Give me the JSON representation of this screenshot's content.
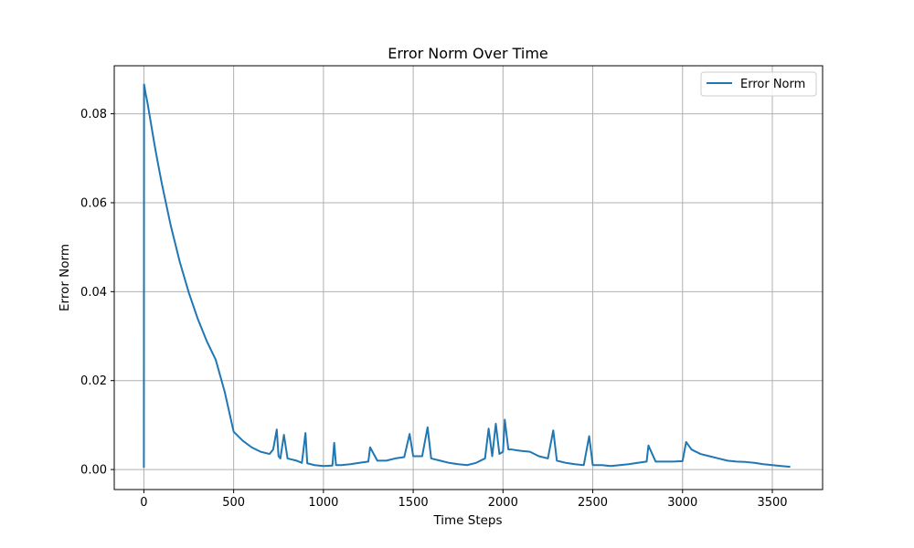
{
  "chart_data": {
    "type": "line",
    "title": "Error Norm Over Time",
    "xlabel": "Time Steps",
    "ylabel": "Error Norm",
    "xlim": [
      -165,
      3780
    ],
    "ylim": [
      -0.0045,
      0.0908
    ],
    "xticks": [
      0,
      500,
      1000,
      1500,
      2000,
      2500,
      3000,
      3500
    ],
    "yticks": [
      0.0,
      0.02,
      0.04,
      0.06,
      0.08
    ],
    "ytick_labels": [
      "0.00",
      "0.02",
      "0.04",
      "0.06",
      "0.08"
    ],
    "grid": true,
    "legend_position": "top-right",
    "series": [
      {
        "name": "Error Norm",
        "color": "#1f77b4",
        "x": [
          0,
          1,
          3,
          10,
          20,
          40,
          60,
          80,
          100,
          150,
          200,
          250,
          300,
          350,
          400,
          450,
          500,
          550,
          600,
          650,
          700,
          720,
          740,
          750,
          760,
          780,
          800,
          850,
          880,
          900,
          910,
          950,
          1000,
          1050,
          1060,
          1070,
          1100,
          1150,
          1200,
          1250,
          1260,
          1300,
          1350,
          1400,
          1450,
          1480,
          1500,
          1550,
          1580,
          1600,
          1650,
          1700,
          1750,
          1800,
          1850,
          1900,
          1920,
          1940,
          1960,
          1980,
          2000,
          2010,
          2030,
          2050,
          2080,
          2100,
          2150,
          2200,
          2250,
          2280,
          2300,
          2350,
          2400,
          2450,
          2480,
          2500,
          2550,
          2600,
          2650,
          2700,
          2750,
          2800,
          2810,
          2850,
          2900,
          2950,
          3000,
          3020,
          3050,
          3100,
          3150,
          3200,
          3250,
          3300,
          3350,
          3400,
          3450,
          3500,
          3550,
          3600
        ],
        "y": [
          0.0004,
          0.0866,
          0.0862,
          0.0845,
          0.0825,
          0.0777,
          0.0729,
          0.0685,
          0.0643,
          0.0548,
          0.0467,
          0.0398,
          0.0339,
          0.0289,
          0.0247,
          0.0175,
          0.0085,
          0.0065,
          0.005,
          0.004,
          0.0035,
          0.0045,
          0.009,
          0.003,
          0.0025,
          0.0078,
          0.0025,
          0.002,
          0.0015,
          0.0082,
          0.0014,
          0.001,
          0.0008,
          0.0009,
          0.006,
          0.001,
          0.001,
          0.0012,
          0.0015,
          0.0018,
          0.005,
          0.002,
          0.002,
          0.0025,
          0.0028,
          0.008,
          0.003,
          0.003,
          0.0095,
          0.0025,
          0.002,
          0.0015,
          0.0012,
          0.001,
          0.0015,
          0.0025,
          0.0092,
          0.003,
          0.0103,
          0.0035,
          0.004,
          0.0112,
          0.0045,
          0.0045,
          0.0043,
          0.0042,
          0.004,
          0.003,
          0.0025,
          0.0088,
          0.002,
          0.0015,
          0.0012,
          0.001,
          0.0075,
          0.001,
          0.001,
          0.0008,
          0.001,
          0.0012,
          0.0015,
          0.0018,
          0.0054,
          0.0018,
          0.0018,
          0.0018,
          0.0019,
          0.0062,
          0.0045,
          0.0035,
          0.003,
          0.0025,
          0.002,
          0.0018,
          0.0017,
          0.0015,
          0.0012,
          0.001,
          0.0008,
          0.0006
        ]
      }
    ]
  }
}
